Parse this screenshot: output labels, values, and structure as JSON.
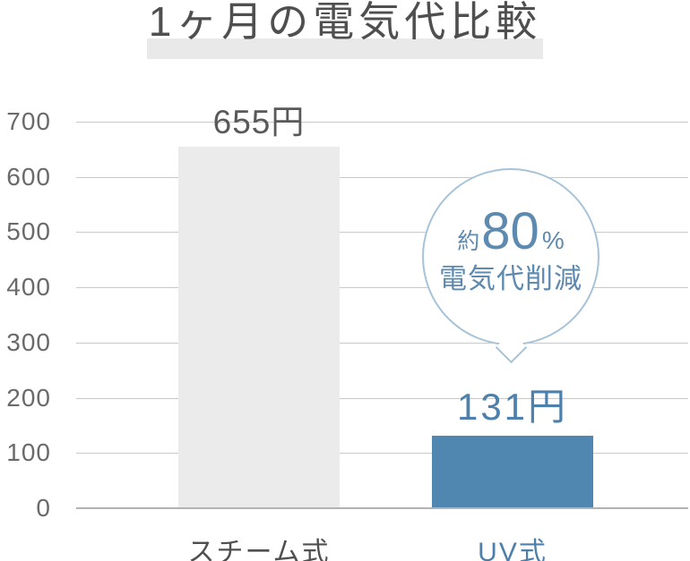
{
  "chart_data": {
    "type": "bar",
    "title": "1ヶ月の電気代比較",
    "categories": [
      "スチーム式",
      "UV式"
    ],
    "values": [
      655,
      131
    ],
    "value_labels": [
      "655円",
      "131円"
    ],
    "unit": "円",
    "yticks": [
      0,
      100,
      200,
      300,
      400,
      500,
      600,
      700
    ],
    "ylim": [
      0,
      700
    ],
    "grid": true,
    "legend": "none",
    "bar_colors": [
      "#ebebeb",
      "#4f87b0"
    ],
    "value_label_colors": [
      "#595959",
      "#4d80aa"
    ],
    "category_colors": [
      "#4f4f4f",
      "#4c7fa9"
    ],
    "annotation": {
      "attached_to": "UV式",
      "line1_prefix": "約",
      "line1_value": "80",
      "line1_suffix": "%",
      "line2": "電気代削減"
    }
  },
  "colors": {
    "accent_blue": "#4f87b0",
    "bar_gray": "#ebebeb",
    "grid_line": "#c9c9c9",
    "baseline": "#b3b3b3",
    "title_text": "#4f4f4f",
    "title_highlight": "#e9e9e9",
    "ytick_text": "#6a6a6a",
    "bubble_border": "#a7c3d8",
    "bubble_text": "#5e8ab0",
    "background": "#ffffff"
  }
}
